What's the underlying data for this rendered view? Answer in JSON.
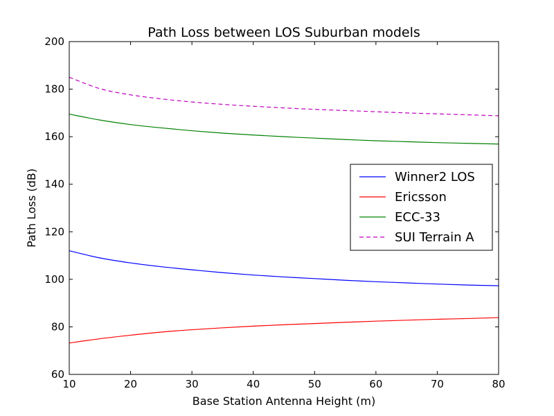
{
  "chart_data": {
    "type": "line",
    "title": "Path Loss between LOS Suburban models",
    "xlabel": "Base Station Antenna Height (m)",
    "ylabel": "Path Loss (dB)",
    "xlim": [
      10,
      80
    ],
    "ylim": [
      60,
      200
    ],
    "xticks": [
      "10",
      "20",
      "30",
      "40",
      "50",
      "60",
      "70",
      "80"
    ],
    "yticks": [
      "60",
      "80",
      "100",
      "120",
      "140",
      "160",
      "180",
      "200"
    ],
    "grid": false,
    "legend_position": "center-right",
    "x": [
      10,
      15,
      20,
      25,
      30,
      35,
      40,
      45,
      50,
      55,
      60,
      65,
      70,
      75,
      80
    ],
    "series": [
      {
        "name": "Winner2 LOS",
        "color": "#0000ff",
        "dash": "solid",
        "values": [
          112.0,
          109.0,
          106.9,
          105.3,
          104.0,
          102.8,
          101.8,
          101.0,
          100.3,
          99.6,
          99.0,
          98.5,
          98.0,
          97.6,
          97.3
        ]
      },
      {
        "name": "Ericsson",
        "color": "#ff0000",
        "dash": "solid",
        "values": [
          73.2,
          75.0,
          76.5,
          77.8,
          78.8,
          79.6,
          80.3,
          80.9,
          81.4,
          81.9,
          82.4,
          82.8,
          83.2,
          83.5,
          83.9
        ]
      },
      {
        "name": "ECC-33",
        "color": "#008000",
        "dash": "solid",
        "values": [
          169.5,
          167.0,
          165.1,
          163.7,
          162.5,
          161.5,
          160.7,
          160.0,
          159.4,
          158.8,
          158.3,
          157.9,
          157.5,
          157.2,
          156.9
        ]
      },
      {
        "name": "SUI Terrain A",
        "color": "#bf00bf",
        "dash": "dashed",
        "values": [
          185.0,
          180.2,
          177.6,
          175.9,
          174.6,
          173.6,
          172.8,
          172.1,
          171.5,
          171.0,
          170.5,
          170.0,
          169.6,
          169.2,
          168.8
        ]
      }
    ]
  }
}
